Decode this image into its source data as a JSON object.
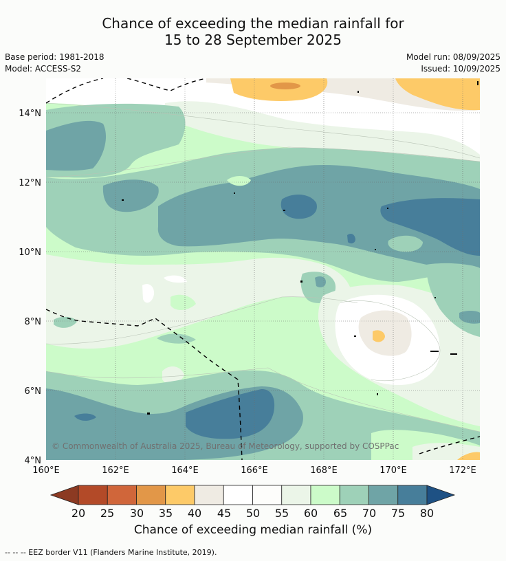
{
  "title_line1": "Chance of exceeding the median rainfall for",
  "title_line2": "15 to 28 September 2025",
  "base_period": "Base period: 1981-2018",
  "model": "Model: ACCESS-S2",
  "model_run": "Model run: 08/09/2025",
  "issued": "Issued: 10/09/2025",
  "copyright": "© Commonwealth of Australia 2025, Bureau of Meteorology, supported by COSPPac",
  "lat_labels": [
    "14°N",
    "12°N",
    "10°N",
    "8°N",
    "6°N",
    "4°N"
  ],
  "lon_labels": [
    "160°E",
    "162°E",
    "164°E",
    "166°E",
    "168°E",
    "170°E",
    "172°E"
  ],
  "colorbar": {
    "ticks": [
      "20",
      "25",
      "30",
      "35",
      "40",
      "45",
      "50",
      "55",
      "60",
      "65",
      "70",
      "75",
      "80"
    ],
    "colors": [
      "#8c3a22",
      "#b34a28",
      "#d0663a",
      "#e29748",
      "#fdca68",
      "#efebe3",
      "#ffffff",
      "#fdfdfb",
      "#ebf5e8",
      "#ccfbc9",
      "#9ed1b8",
      "#6fa4a6",
      "#477e9a",
      "#1e5184"
    ],
    "label": "Chance of exceeding median rainfall (%)"
  },
  "footer": "--  --  -- EEZ border V11 (Flanders Marine Institute, 2019)."
}
